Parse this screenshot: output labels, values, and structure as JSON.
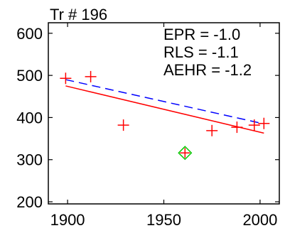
{
  "chart_data": {
    "type": "scatter",
    "title": "Tr # 196",
    "xlabel": "",
    "ylabel": "",
    "xlim": [
      1890,
      2010
    ],
    "ylim": [
      195,
      625
    ],
    "xticks": [
      1900,
      1950,
      2000
    ],
    "yticks": [
      200,
      300,
      400,
      500,
      600
    ],
    "grid": false,
    "points": [
      {
        "x": 1899,
        "y": 493
      },
      {
        "x": 1912,
        "y": 497
      },
      {
        "x": 1929,
        "y": 382
      },
      {
        "x": 1975,
        "y": 369
      },
      {
        "x": 1988,
        "y": 377
      },
      {
        "x": 1997,
        "y": 382
      },
      {
        "x": 2002,
        "y": 386
      }
    ],
    "outlier": {
      "x": 1961,
      "y": 316
    },
    "lines": [
      {
        "name": "",
        "style": "solid",
        "color": "#ff0000",
        "x": [
          1899,
          2002
        ],
        "y": [
          475,
          363
        ]
      },
      {
        "name": "",
        "style": "dashed",
        "color": "#0000ff",
        "x": [
          1899,
          2002
        ],
        "y": [
          490,
          385
        ]
      }
    ],
    "annotations": [
      "EPR = -1.0",
      "RLS = -1.1",
      "AEHR = -1.2"
    ],
    "colors": {
      "points": "#ff0000",
      "outlier": "#00cc00",
      "outlier_inner": "#ff0000",
      "axes": "#000000"
    }
  }
}
